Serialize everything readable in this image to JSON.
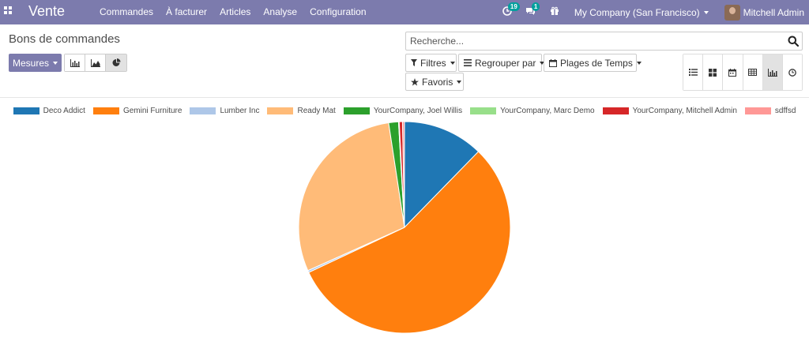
{
  "navbar": {
    "brand": "Vente",
    "menu": [
      "Commandes",
      "À facturer",
      "Articles",
      "Analyse",
      "Configuration"
    ],
    "activity_count": "19",
    "messages_count": "1",
    "company": "My Company (San Francisco)",
    "user": "Mitchell Admin"
  },
  "control_panel": {
    "title": "Bons de commandes",
    "measures_label": "Mesures",
    "search_placeholder": "Recherche...",
    "filters_label": "Filtres",
    "groupby_label": "Regrouper par",
    "timeranges_label": "Plages de Temps",
    "favorites_label": "Favoris",
    "chart_modes": [
      "bar-chart-icon",
      "line-chart-icon",
      "pie-chart-icon"
    ],
    "active_chart_mode": "pie",
    "views": [
      "list-view-icon",
      "kanban-view-icon",
      "calendar-view-icon",
      "pivot-view-icon",
      "graph-view-icon",
      "activity-view-icon"
    ],
    "active_view": "graph"
  },
  "chart_data": {
    "type": "pie",
    "categories": [
      "Deco Addict",
      "Gemini Furniture",
      "Lumber Inc",
      "Ready Mat",
      "YourCompany, Joel Willis",
      "YourCompany, Marc Demo",
      "YourCompany, Mitchell Admin",
      "sdffsd"
    ],
    "values": [
      12.3,
      55.7,
      0.3,
      29.3,
      1.5,
      0.1,
      0.5,
      0.3
    ],
    "colors": [
      "#1f77b4",
      "#ff7f0e",
      "#aec7e8",
      "#ffbb78",
      "#2ca02c",
      "#98df8a",
      "#d62728",
      "#ff9896"
    ],
    "legend_position": "top"
  }
}
